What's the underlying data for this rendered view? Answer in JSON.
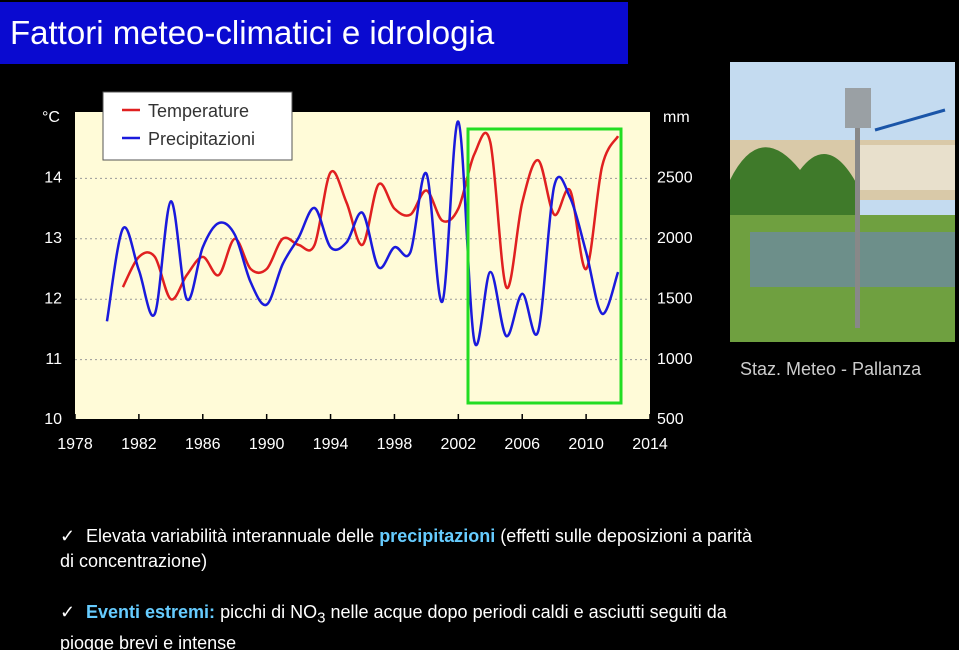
{
  "title": "Fattori meteo-climatici e idrologia",
  "chart_data": {
    "type": "line",
    "ylabel": "°C",
    "y2label": "mm",
    "x": [
      1980,
      1981,
      1982,
      1983,
      1984,
      1985,
      1986,
      1987,
      1988,
      1989,
      1990,
      1991,
      1992,
      1993,
      1994,
      1995,
      1996,
      1997,
      1998,
      1999,
      2000,
      2001,
      2002,
      2003,
      2004,
      2005,
      2006,
      2007,
      2008,
      2009,
      2010,
      2011,
      2012
    ],
    "xlim": [
      1978,
      2014
    ],
    "xticks": [
      1978,
      1982,
      1986,
      1990,
      1994,
      1998,
      2002,
      2006,
      2010,
      2014
    ],
    "ylim": [
      10,
      15
    ],
    "yticks": [
      10,
      11,
      12,
      13,
      14
    ],
    "y2lim": [
      500,
      3000
    ],
    "y2ticks": [
      500,
      1000,
      1500,
      2000,
      2500
    ],
    "grid": true,
    "series": [
      {
        "name": "Temperature",
        "color": "#e02020",
        "axis": "y",
        "values": [
          null,
          12.2,
          12.7,
          12.7,
          12.0,
          12.4,
          12.7,
          12.4,
          13.0,
          12.5,
          12.5,
          13.0,
          12.9,
          12.9,
          14.1,
          13.6,
          12.9,
          13.9,
          13.5,
          13.4,
          13.8,
          13.3,
          13.5,
          14.4,
          14.6,
          12.2,
          13.6,
          14.3,
          13.4,
          13.8,
          12.5,
          14.2,
          14.7
        ]
      },
      {
        "name": "Precipitazioni",
        "color": "#1a1adc",
        "axis": "y2",
        "values": [
          1317,
          2085,
          1740,
          1380,
          2310,
          1500,
          1930,
          2130,
          2035,
          1640,
          1455,
          1790,
          2010,
          2255,
          1930,
          1970,
          2215,
          1765,
          1930,
          1890,
          2540,
          1480,
          2970,
          1155,
          1725,
          1195,
          1545,
          1235,
          2435,
          2340,
          1890,
          1380,
          1725
        ]
      }
    ]
  },
  "photo_caption": "Staz. Meteo - Pallanza",
  "bullets": [
    {
      "line1": [
        "Elevata variabilità interannuale delle ",
        "precipitazioni",
        " (effetti sulle deposizioni a parità"
      ],
      "line2": "di concentrazione)"
    },
    {
      "line1": [
        "Eventi estremi:",
        " picchi di NO",
        "3",
        " nelle acque dopo periodi caldi e asciutti seguiti da"
      ],
      "line2": "piogge brevi e intense"
    }
  ]
}
